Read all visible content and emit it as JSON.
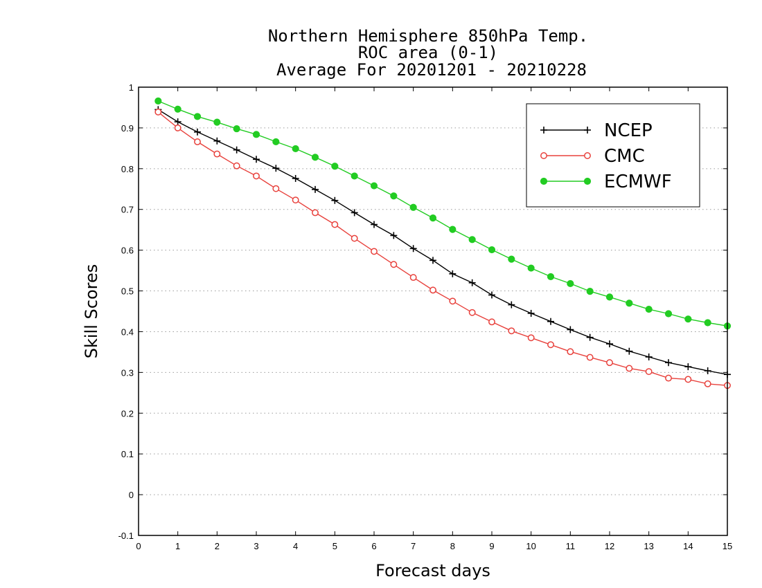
{
  "chart_data": {
    "type": "line",
    "title": "Northern Hemisphere 850hPa Temp.",
    "subtitle": "ROC area (0-1)",
    "subtitle2": "Average For 20201201 - 20210228",
    "xlabel": "Forecast days",
    "ylabel": "Skill Scores",
    "xlim": [
      0,
      15
    ],
    "ylim": [
      -0.1,
      1
    ],
    "xticks": [
      0,
      1,
      2,
      3,
      4,
      5,
      6,
      7,
      8,
      9,
      10,
      11,
      12,
      13,
      14,
      15
    ],
    "xtick_labels": [
      "0",
      "1",
      "2",
      "3",
      "4",
      "5",
      "6",
      "7",
      "8",
      "9",
      "10",
      "11",
      "12",
      "13",
      "14",
      "15"
    ],
    "yticks": [
      -0.1,
      0,
      0.1,
      0.2,
      0.3,
      0.4,
      0.5,
      0.6,
      0.7,
      0.8,
      0.9,
      1
    ],
    "ytick_labels": [
      "-0.1",
      "0",
      "0.1",
      "0.2",
      "0.3",
      "0.4",
      "0.5",
      "0.6",
      "0.7",
      "0.8",
      "0.9",
      "1"
    ],
    "grid": true,
    "legend_position": "top-right",
    "x": [
      0.5,
      1,
      1.5,
      2,
      2.5,
      3,
      3.5,
      4,
      4.5,
      5,
      5.5,
      6,
      6.5,
      7,
      7.5,
      8,
      8.5,
      9,
      9.5,
      10,
      10.5,
      11,
      11.5,
      12,
      12.5,
      13,
      13.5,
      14,
      14.5,
      15
    ],
    "series": [
      {
        "name": "NCEP",
        "color": "#000000",
        "marker": "plus",
        "values": [
          0.945,
          0.915,
          0.89,
          0.868,
          0.846,
          0.823,
          0.801,
          0.776,
          0.749,
          0.722,
          0.692,
          0.663,
          0.636,
          0.604,
          0.575,
          0.542,
          0.52,
          0.49,
          0.466,
          0.445,
          0.425,
          0.405,
          0.386,
          0.37,
          0.352,
          0.338,
          0.324,
          0.314,
          0.304,
          0.295
        ]
      },
      {
        "name": "CMC",
        "color": "#e8413c",
        "marker": "open-circle",
        "values": [
          0.939,
          0.9,
          0.866,
          0.836,
          0.807,
          0.782,
          0.751,
          0.723,
          0.692,
          0.663,
          0.629,
          0.597,
          0.565,
          0.533,
          0.502,
          0.475,
          0.447,
          0.424,
          0.402,
          0.385,
          0.368,
          0.351,
          0.337,
          0.324,
          0.31,
          0.302,
          0.286,
          0.283,
          0.272,
          0.268
        ]
      },
      {
        "name": "ECMWF",
        "color": "#22cc22",
        "marker": "filled-circle",
        "values": [
          0.966,
          0.946,
          0.928,
          0.914,
          0.898,
          0.884,
          0.866,
          0.849,
          0.828,
          0.806,
          0.782,
          0.758,
          0.733,
          0.705,
          0.679,
          0.651,
          0.626,
          0.601,
          0.578,
          0.556,
          0.535,
          0.518,
          0.499,
          0.485,
          0.47,
          0.455,
          0.444,
          0.431,
          0.422,
          0.414
        ]
      }
    ]
  }
}
